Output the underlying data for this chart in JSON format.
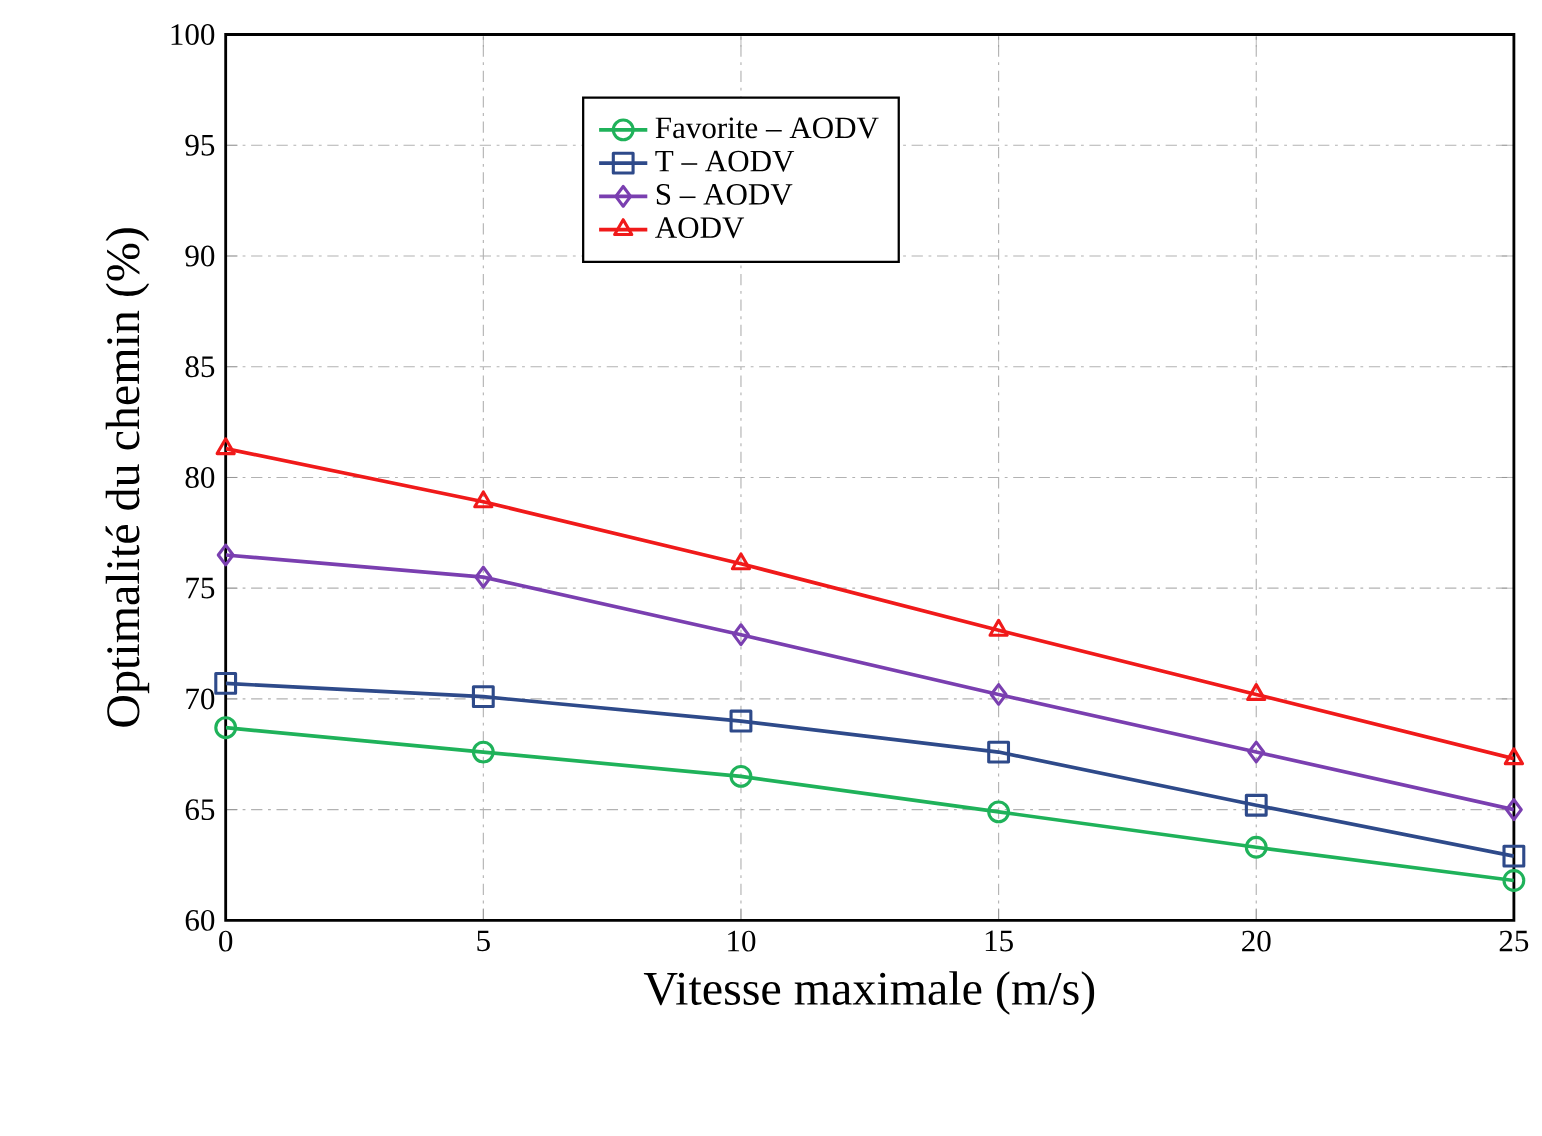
{
  "chart_data": {
    "type": "line",
    "xlabel": "Vitesse maximale (m/s)",
    "ylabel": "Optimalité du chemin (%)",
    "x": [
      0,
      5,
      10,
      15,
      20,
      25
    ],
    "series": [
      {
        "name": "Favorite – AODV",
        "color": "#1fb25a",
        "marker": "circle",
        "values": [
          68.7,
          67.6,
          66.5,
          64.9,
          63.3,
          61.8
        ]
      },
      {
        "name": "T – AODV",
        "color": "#2e4a8a",
        "marker": "square",
        "values": [
          70.7,
          70.1,
          69.0,
          67.6,
          65.2,
          62.9
        ]
      },
      {
        "name": "S – AODV",
        "color": "#7a3fb0",
        "marker": "diamond",
        "values": [
          76.5,
          75.5,
          72.9,
          70.2,
          67.6,
          65.0
        ]
      },
      {
        "name": "AODV",
        "color": "#f01a1a",
        "marker": "triangle",
        "values": [
          81.3,
          78.9,
          76.1,
          73.1,
          70.2,
          67.3
        ]
      }
    ],
    "xlim": [
      0,
      25
    ],
    "ylim": [
      60,
      100
    ],
    "xticks": [
      0,
      5,
      10,
      15,
      20,
      25
    ],
    "yticks": [
      60,
      65,
      70,
      75,
      80,
      85,
      90,
      95,
      100
    ],
    "grid": true,
    "legend": "top",
    "line_style": "solid"
  }
}
